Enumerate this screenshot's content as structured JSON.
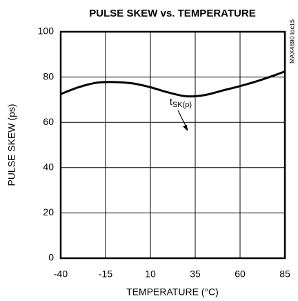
{
  "chart_data": {
    "type": "line",
    "title": "PULSE SKEW vs. TEMPERATURE",
    "x_label": "TEMPERATURE (°C)",
    "y_label": "PULSE SKEW (ps)",
    "side_note": "MAX4890 toc15",
    "annotation": {
      "text": "t",
      "subscript": "SK(p)"
    },
    "x": [
      -40,
      -30,
      -20,
      -10,
      0,
      10,
      20,
      30,
      40,
      50,
      60,
      70,
      80,
      85
    ],
    "values": [
      72.5,
      75.5,
      77.5,
      77.8,
      77.2,
      75.5,
      73.2,
      71.5,
      72,
      74,
      76,
      78.3,
      81,
      82.5
    ],
    "color": "#000000",
    "xlim": [
      -40,
      85
    ],
    "xticks": [
      -40,
      -15,
      10,
      35,
      60,
      85
    ],
    "ylim": [
      0,
      100
    ],
    "yticks": [
      0,
      20,
      40,
      60,
      80,
      100
    ],
    "grid": true
  }
}
